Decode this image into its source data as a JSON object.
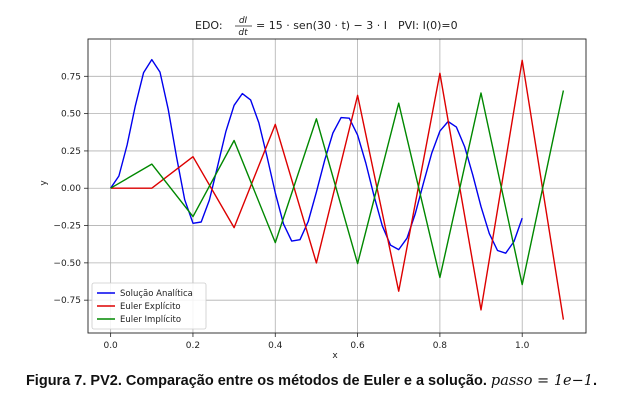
{
  "chart_data": {
    "type": "line",
    "title_prefix": "EDO: ",
    "title_fraction": {
      "numerator": "dI",
      "denominator": "dt"
    },
    "title_equation": "= 15 · sen(30 · t) − 3 · I",
    "title_pvi": "PVI: I(0)=0",
    "xlabel": "x",
    "ylabel": "y",
    "xlim": [
      -0.055,
      1.155
    ],
    "ylim": [
      -0.97,
      1.0
    ],
    "xticks": [
      0.0,
      0.2,
      0.4,
      0.6,
      0.8,
      1.0
    ],
    "xtick_labels": [
      "0.0",
      "0.2",
      "0.4",
      "0.6",
      "0.8",
      "1.0"
    ],
    "yticks": [
      -0.75,
      -0.5,
      -0.25,
      0.0,
      0.25,
      0.5,
      0.75
    ],
    "ytick_labels": [
      "−0.75",
      "−0.50",
      "−0.25",
      "0.00",
      "0.25",
      "0.50",
      "0.75"
    ],
    "grid": true,
    "legend_position": "lower-left",
    "series": [
      {
        "name": "Solução Analítica",
        "color": "#0000ee",
        "x": [
          0,
          0.02,
          0.04,
          0.06,
          0.08,
          0.1,
          0.12,
          0.14,
          0.16,
          0.18,
          0.2,
          0.22,
          0.24,
          0.26,
          0.28,
          0.3,
          0.32,
          0.34,
          0.36,
          0.38,
          0.4,
          0.42,
          0.44,
          0.46,
          0.48,
          0.5,
          0.52,
          0.54,
          0.56,
          0.58,
          0.6,
          0.62,
          0.64,
          0.66,
          0.68,
          0.7,
          0.72,
          0.74,
          0.76,
          0.78,
          0.8,
          0.82,
          0.84,
          0.86,
          0.88,
          0.9,
          0.92,
          0.94,
          0.96,
          0.98,
          1.0
        ],
        "y": [
          0.0,
          0.082,
          0.29,
          0.552,
          0.775,
          0.862,
          0.778,
          0.526,
          0.211,
          -0.077,
          -0.235,
          -0.226,
          -0.079,
          0.148,
          0.381,
          0.556,
          0.634,
          0.592,
          0.44,
          0.213,
          -0.031,
          -0.239,
          -0.354,
          -0.345,
          -0.223,
          -0.026,
          0.188,
          0.37,
          0.473,
          0.469,
          0.356,
          0.169,
          -0.051,
          -0.252,
          -0.381,
          -0.411,
          -0.335,
          -0.172,
          0.033,
          0.234,
          0.383,
          0.447,
          0.41,
          0.279,
          0.088,
          -0.123,
          -0.304,
          -0.417,
          -0.435,
          -0.357,
          -0.2
        ]
      },
      {
        "name": "Euler Explícito",
        "color": "#dd0000",
        "x": [
          0,
          0.1,
          0.2,
          0.3,
          0.4,
          0.5,
          0.6,
          0.7,
          0.8,
          0.9,
          1.0,
          1.1
        ],
        "y": [
          0.0,
          0.0,
          0.211,
          -0.264,
          0.428,
          -0.5,
          0.622,
          -0.69,
          0.77,
          -0.815,
          0.857,
          -0.88
        ]
      },
      {
        "name": "Euler Implícito",
        "color": "#008800",
        "x": [
          0,
          0.1,
          0.2,
          0.3,
          0.4,
          0.5,
          0.6,
          0.7,
          0.8,
          0.9,
          1.0,
          1.1
        ],
        "y": [
          0.0,
          0.162,
          -0.19,
          0.32,
          -0.364,
          0.465,
          -0.505,
          0.57,
          -0.598,
          0.638,
          -0.646,
          0.655
        ]
      }
    ]
  },
  "caption": {
    "text": "Figura 7. PV2. Comparação entre os métodos de Euler e a solução. ",
    "math": "passo = 1e−1",
    "end": "."
  }
}
